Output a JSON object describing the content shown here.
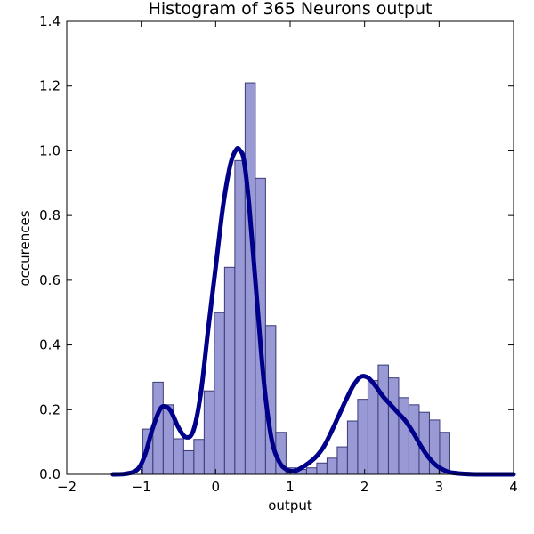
{
  "chart_data": {
    "type": "histogram",
    "title": "Histogram of 365 Neurons output",
    "xlabel": "output",
    "ylabel": "occurences",
    "xlim": [
      -2,
      4
    ],
    "ylim": [
      0,
      1.4
    ],
    "xticks": [
      -2,
      -1,
      0,
      1,
      2,
      3,
      4
    ],
    "xtick_labels": [
      "−2",
      "−1",
      "0",
      "1",
      "2",
      "3",
      "4"
    ],
    "yticks": [
      0.0,
      0.2,
      0.4,
      0.6,
      0.8,
      1.0,
      1.2,
      1.4
    ],
    "ytick_labels": [
      "0.0",
      "0.2",
      "0.4",
      "0.6",
      "0.8",
      "1.0",
      "1.2",
      "1.4"
    ],
    "grid": false,
    "colors": {
      "bar_fill": "#9999d6",
      "bar_edge": "#3a3a78",
      "kde_line": "#00008b"
    },
    "bin_width": 0.1375,
    "bins": [
      {
        "x0": -0.98,
        "value": 0.14
      },
      {
        "x0": -0.8425,
        "value": 0.285
      },
      {
        "x0": -0.705,
        "value": 0.215
      },
      {
        "x0": -0.5675,
        "value": 0.11
      },
      {
        "x0": -0.43,
        "value": 0.073
      },
      {
        "x0": -0.2925,
        "value": 0.108
      },
      {
        "x0": -0.155,
        "value": 0.258
      },
      {
        "x0": -0.0175,
        "value": 0.5
      },
      {
        "x0": 0.12,
        "value": 0.64
      },
      {
        "x0": 0.2575,
        "value": 0.97
      },
      {
        "x0": 0.395,
        "value": 1.21
      },
      {
        "x0": 0.5325,
        "value": 0.915
      },
      {
        "x0": 0.67,
        "value": 0.46
      },
      {
        "x0": 0.8075,
        "value": 0.13
      },
      {
        "x0": 0.945,
        "value": 0.02
      },
      {
        "x0": 1.0825,
        "value": 0.015
      },
      {
        "x0": 1.22,
        "value": 0.02
      },
      {
        "x0": 1.3575,
        "value": 0.035
      },
      {
        "x0": 1.495,
        "value": 0.05
      },
      {
        "x0": 1.6325,
        "value": 0.085
      },
      {
        "x0": 1.77,
        "value": 0.165
      },
      {
        "x0": 1.9075,
        "value": 0.232
      },
      {
        "x0": 2.045,
        "value": 0.29
      },
      {
        "x0": 2.1825,
        "value": 0.338
      },
      {
        "x0": 2.32,
        "value": 0.298
      },
      {
        "x0": 2.4575,
        "value": 0.237
      },
      {
        "x0": 2.595,
        "value": 0.215
      },
      {
        "x0": 2.7325,
        "value": 0.192
      },
      {
        "x0": 2.87,
        "value": 0.168
      },
      {
        "x0": 3.0075,
        "value": 0.13
      }
    ],
    "series": [
      {
        "type": "line",
        "x": [
          -1.38,
          -1.2,
          -1.05,
          -0.95,
          -0.85,
          -0.75,
          -0.68,
          -0.6,
          -0.5,
          -0.4,
          -0.3,
          -0.2,
          -0.1,
          0.0,
          0.1,
          0.2,
          0.28,
          0.33,
          0.38,
          0.45,
          0.55,
          0.65,
          0.75,
          0.85,
          0.95,
          1.05,
          1.15,
          1.25,
          1.35,
          1.45,
          1.55,
          1.65,
          1.75,
          1.85,
          1.95,
          2.05,
          2.15,
          2.25,
          2.35,
          2.45,
          2.55,
          2.65,
          2.75,
          2.85,
          2.95,
          3.05,
          3.15,
          3.3,
          3.5,
          3.7,
          4.0
        ],
        "y": [
          0.0,
          0.002,
          0.015,
          0.06,
          0.14,
          0.2,
          0.21,
          0.195,
          0.145,
          0.115,
          0.135,
          0.25,
          0.45,
          0.64,
          0.83,
          0.96,
          1.005,
          1.0,
          0.97,
          0.83,
          0.55,
          0.28,
          0.11,
          0.04,
          0.015,
          0.01,
          0.02,
          0.035,
          0.055,
          0.085,
          0.13,
          0.18,
          0.23,
          0.275,
          0.302,
          0.298,
          0.272,
          0.24,
          0.215,
          0.19,
          0.165,
          0.13,
          0.09,
          0.055,
          0.03,
          0.015,
          0.006,
          0.002,
          0.0,
          0.0,
          0.0
        ]
      }
    ]
  }
}
